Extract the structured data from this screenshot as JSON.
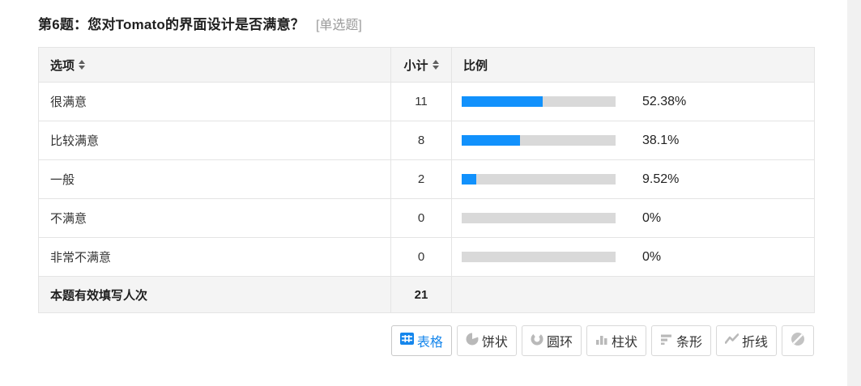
{
  "question": {
    "title": "第6题：您对Tomato的界面设计是否满意？",
    "type_tag": "[单选题]"
  },
  "table": {
    "headers": {
      "option": "选项",
      "subtotal": "小计",
      "proportion": "比例"
    },
    "rows": [
      {
        "option": "很满意",
        "subtotal": "11",
        "percent": "52.38%",
        "ratio": 52.38
      },
      {
        "option": "比较满意",
        "subtotal": "8",
        "percent": "38.1%",
        "ratio": 38.1
      },
      {
        "option": "一般",
        "subtotal": "2",
        "percent": "9.52%",
        "ratio": 9.52
      },
      {
        "option": "不满意",
        "subtotal": "0",
        "percent": "0%",
        "ratio": 0
      },
      {
        "option": "非常不满意",
        "subtotal": "0",
        "percent": "0%",
        "ratio": 0
      }
    ],
    "footer": {
      "label": "本题有效填写人次",
      "value": "21"
    }
  },
  "toolbar": {
    "buttons": [
      {
        "label": "表格",
        "icon": "table-icon",
        "active": true
      },
      {
        "label": "饼状",
        "icon": "pie-chart-icon",
        "active": false
      },
      {
        "label": "圆环",
        "icon": "donut-chart-icon",
        "active": false
      },
      {
        "label": "柱状",
        "icon": "column-chart-icon",
        "active": false
      },
      {
        "label": "条形",
        "icon": "bar-chart-icon",
        "active": false
      },
      {
        "label": "折线",
        "icon": "line-chart-icon",
        "active": false
      },
      {
        "label": "",
        "icon": "slash-circle-icon",
        "active": false
      }
    ]
  },
  "colors": {
    "accent": "#1586ec",
    "bar_fill": "#1191fc",
    "bar_track": "#d9d9d9",
    "header_bg": "#f4f4f4",
    "border": "#e4e4e4",
    "muted_text": "#9b9b9b"
  },
  "chart_data": {
    "type": "table",
    "title": "第6题：您对Tomato的界面设计是否满意？",
    "categories": [
      "很满意",
      "比较满意",
      "一般",
      "不满意",
      "非常不满意"
    ],
    "counts": [
      11,
      8,
      2,
      0,
      0
    ],
    "percents": [
      52.38,
      38.1,
      9.52,
      0,
      0
    ],
    "total_label": "本题有效填写人次",
    "total": 21
  }
}
